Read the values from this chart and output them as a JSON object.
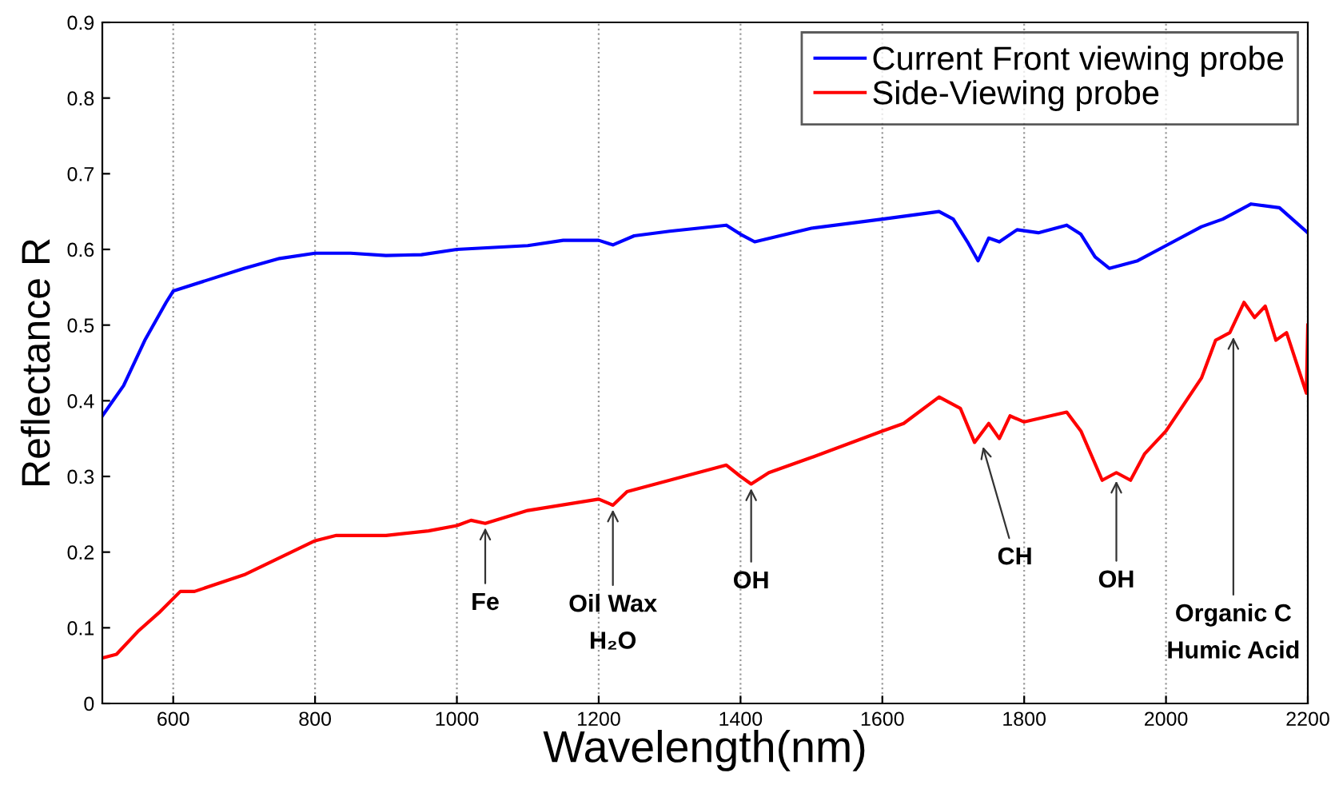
{
  "chart_data": {
    "type": "line",
    "xlabel": "Wavelength(nm)",
    "ylabel": "Reflectance R",
    "xlim": [
      500,
      2200
    ],
    "ylim": [
      0,
      0.9
    ],
    "xticks": [
      600,
      800,
      1000,
      1200,
      1400,
      1600,
      1800,
      2000,
      2200
    ],
    "yticks": [
      0,
      0.1,
      0.2,
      0.3,
      0.4,
      0.5,
      0.6,
      0.7,
      0.8,
      0.9
    ],
    "grid": "x",
    "legend": "top right",
    "line_style": "solid",
    "marker": "none",
    "series": [
      {
        "name": "Current Front viewing probe",
        "color": "#0000ff",
        "x": [
          500,
          530,
          560,
          590,
          600,
          650,
          700,
          750,
          800,
          850,
          900,
          950,
          1000,
          1100,
          1150,
          1200,
          1220,
          1250,
          1300,
          1380,
          1400,
          1420,
          1500,
          1600,
          1680,
          1700,
          1720,
          1735,
          1750,
          1765,
          1790,
          1820,
          1860,
          1880,
          1900,
          1920,
          1960,
          2000,
          2050,
          2080,
          2120,
          2160,
          2200
        ],
        "values": [
          0.38,
          0.42,
          0.48,
          0.53,
          0.545,
          0.56,
          0.575,
          0.588,
          0.595,
          0.595,
          0.592,
          0.593,
          0.6,
          0.605,
          0.612,
          0.612,
          0.606,
          0.618,
          0.624,
          0.632,
          0.62,
          0.61,
          0.628,
          0.64,
          0.65,
          0.64,
          0.61,
          0.585,
          0.615,
          0.61,
          0.626,
          0.622,
          0.632,
          0.62,
          0.59,
          0.575,
          0.585,
          0.605,
          0.63,
          0.64,
          0.66,
          0.655,
          0.622
        ]
      },
      {
        "name": "Side-Viewing probe",
        "color": "#ff0000",
        "x": [
          500,
          520,
          550,
          580,
          610,
          630,
          700,
          800,
          830,
          900,
          960,
          1000,
          1020,
          1040,
          1100,
          1200,
          1220,
          1240,
          1300,
          1380,
          1400,
          1415,
          1440,
          1500,
          1600,
          1630,
          1680,
          1710,
          1730,
          1750,
          1765,
          1780,
          1800,
          1860,
          1880,
          1910,
          1930,
          1950,
          1970,
          2000,
          2050,
          2070,
          2090,
          2110,
          2125,
          2140,
          2155,
          2170,
          2198,
          2200
        ],
        "values": [
          0.06,
          0.065,
          0.095,
          0.12,
          0.148,
          0.148,
          0.17,
          0.215,
          0.222,
          0.222,
          0.228,
          0.235,
          0.242,
          0.238,
          0.255,
          0.27,
          0.262,
          0.28,
          0.295,
          0.315,
          0.3,
          0.29,
          0.305,
          0.325,
          0.36,
          0.37,
          0.405,
          0.39,
          0.345,
          0.37,
          0.35,
          0.38,
          0.372,
          0.385,
          0.36,
          0.295,
          0.305,
          0.295,
          0.33,
          0.36,
          0.43,
          0.48,
          0.49,
          0.53,
          0.51,
          0.525,
          0.48,
          0.49,
          0.41,
          0.5
        ]
      }
    ],
    "annotations": [
      {
        "text": "Fe",
        "x": 1040,
        "y": 0.238
      },
      {
        "text": "Oil Wax\nH₂O",
        "x": 1220,
        "y": 0.262
      },
      {
        "text": "OH",
        "x": 1415,
        "y": 0.29
      },
      {
        "text": "CH",
        "x": 1740,
        "y": 0.345
      },
      {
        "text": "OH",
        "x": 1930,
        "y": 0.3
      },
      {
        "text": "Organic C\nHumic Acid",
        "x": 2095,
        "y": 0.49
      }
    ]
  }
}
